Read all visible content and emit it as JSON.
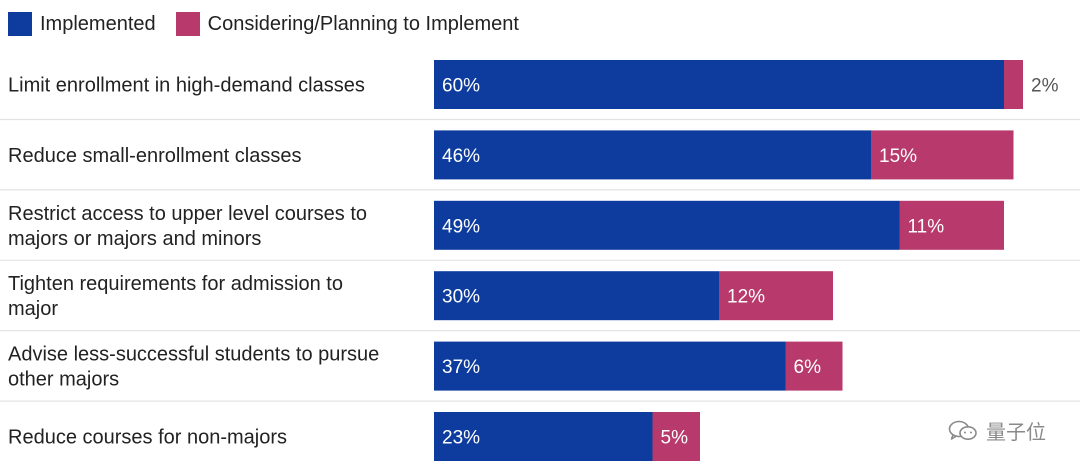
{
  "chart_data": {
    "type": "bar",
    "orientation": "horizontal",
    "stacked": true,
    "legend_position": "top-left",
    "categories": [
      [
        "Limit enrollment in high-demand classes"
      ],
      [
        "Reduce small-enrollment classes"
      ],
      [
        "Restrict access to upper level courses to",
        "majors or majors and minors"
      ],
      [
        "Tighten requirements for admission to",
        "major"
      ],
      [
        "Advise less-successful students to pursue",
        "other majors"
      ],
      [
        "Reduce courses for non-majors"
      ]
    ],
    "series": [
      {
        "name": "Implemented",
        "color": "#0d3c9e",
        "values": [
          60,
          46,
          49,
          30,
          37,
          23
        ],
        "labels": [
          "60%",
          "46%",
          "49%",
          "30%",
          "37%",
          "23%"
        ]
      },
      {
        "name": "Considering/Planning to Implement",
        "color": "#b83a6c",
        "values": [
          2,
          15,
          11,
          12,
          6,
          5
        ],
        "labels": [
          "2%",
          "15%",
          "11%",
          "12%",
          "6%",
          "5%"
        ]
      }
    ],
    "xlim": [
      0,
      70
    ],
    "grid": false
  },
  "watermark": {
    "text": "量子位",
    "icon": "wechat-icon"
  }
}
